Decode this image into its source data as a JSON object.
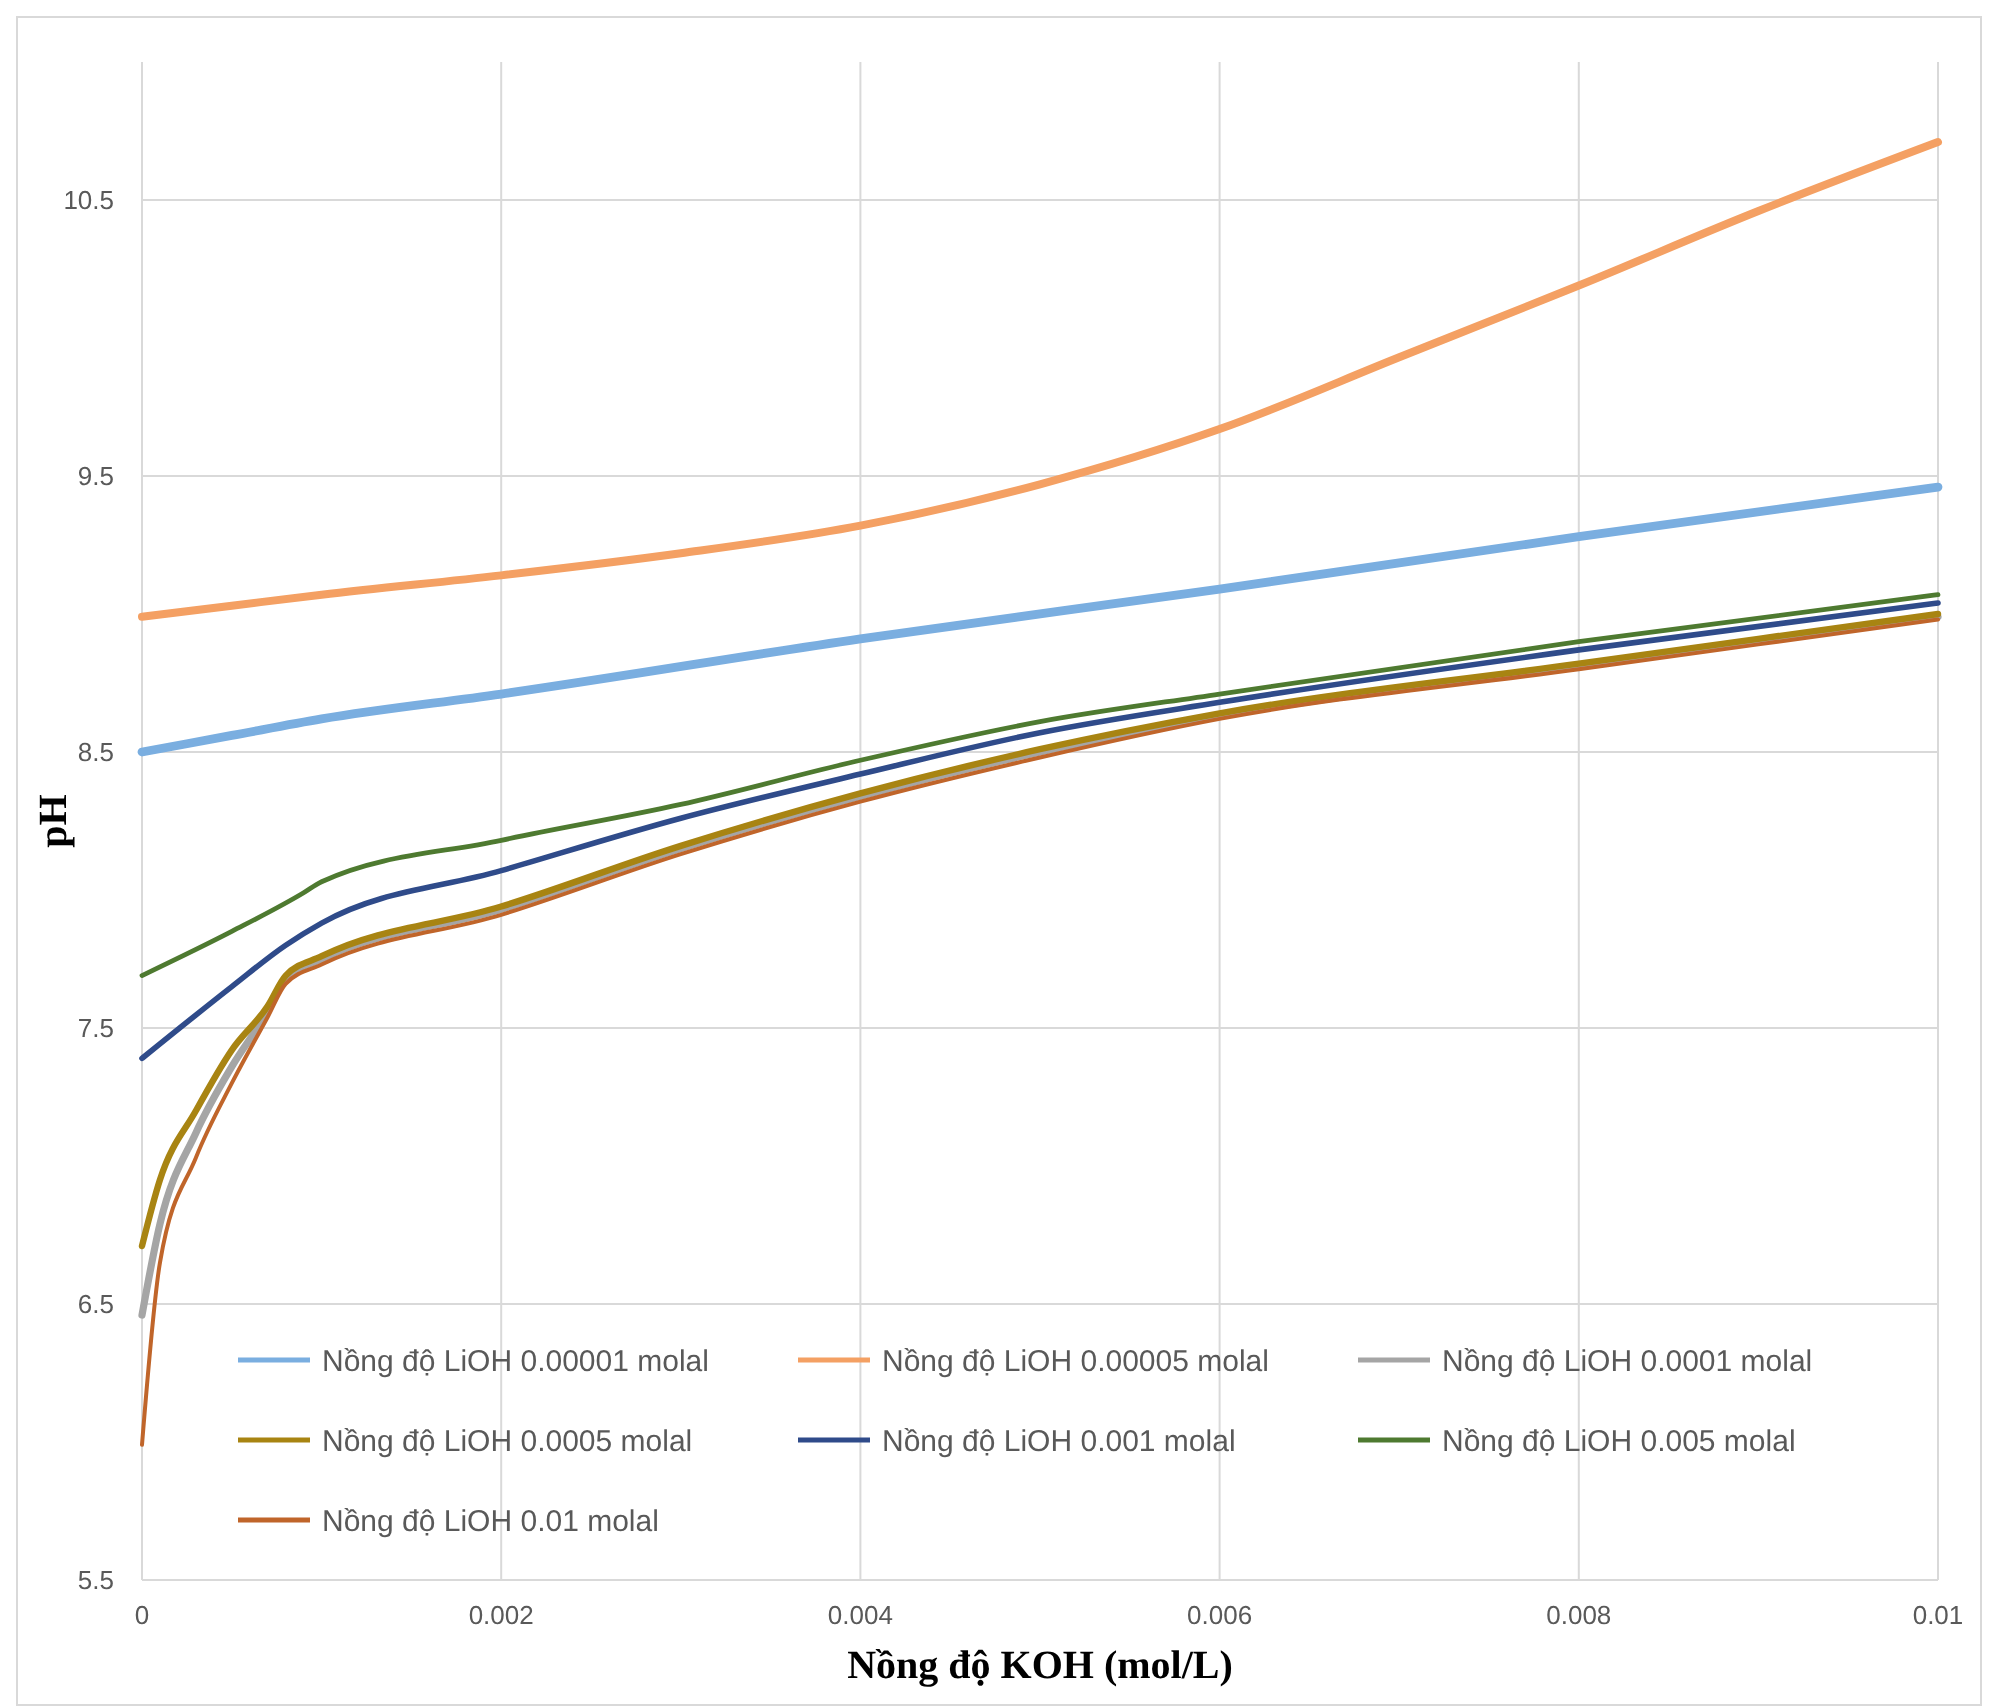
{
  "chart_data": {
    "type": "line",
    "xlabel": "Nồng độ KOH (mol/L)",
    "ylabel": "pH",
    "xlim": [
      0,
      0.01
    ],
    "xticks": [
      0,
      0.002,
      0.004,
      0.006,
      0.008,
      0.01
    ],
    "ylim": [
      5.5,
      11
    ],
    "yticks": [
      5.5,
      6.5,
      7.5,
      8.5,
      9.5,
      10.5
    ],
    "grid": true,
    "legend": "bottom right",
    "marker": "none",
    "line_style": "solid",
    "series": [
      {
        "name": "Nồng độ LiOH 0.00001 molal",
        "color": "#7aaee0",
        "x": [
          0,
          0.0005,
          0.001,
          0.002,
          0.004,
          0.006,
          0.008,
          0.01
        ],
        "values": [
          8.5,
          8.56,
          8.62,
          8.71,
          8.91,
          9.09,
          9.28,
          9.46
        ]
      },
      {
        "name": "Nồng độ LiOH 0.00005 molal",
        "color": "#f4a063",
        "x": [
          0,
          0.0005,
          0.001,
          0.002,
          0.003,
          0.004,
          0.005,
          0.006,
          0.007,
          0.008,
          0.009,
          0.01
        ],
        "values": [
          8.99,
          9.03,
          9.07,
          9.14,
          9.22,
          9.32,
          9.47,
          9.67,
          9.93,
          10.19,
          10.46,
          10.71
        ]
      },
      {
        "name": "Nồng độ LiOH 0.0001 molal",
        "color": "#a5a5a5",
        "x": [
          0,
          0.0001,
          0.0003,
          0.0005,
          0.0007,
          0.0008,
          0.001,
          0.002,
          0.003,
          0.004,
          0.005,
          0.006,
          0.008,
          0.01
        ],
        "values": [
          6.46,
          6.79,
          7.12,
          7.36,
          7.56,
          7.68,
          7.75,
          7.93,
          8.15,
          8.34,
          8.5,
          8.63,
          8.81,
          8.99
        ]
      },
      {
        "name": "Nồng độ LiOH 0.0005 molal",
        "color": "#a88412",
        "x": [
          0,
          0.0001,
          0.0003,
          0.0005,
          0.0007,
          0.0008,
          0.001,
          0.002,
          0.003,
          0.004,
          0.005,
          0.006,
          0.008,
          0.01
        ],
        "values": [
          6.71,
          6.95,
          7.2,
          7.42,
          7.58,
          7.69,
          7.76,
          7.94,
          8.16,
          8.35,
          8.51,
          8.64,
          8.82,
          9.0
        ]
      },
      {
        "name": "Nồng độ LiOH 0.001 molal",
        "color": "#2f4b8a",
        "x": [
          0,
          0.0005,
          0.0008,
          0.001,
          0.002,
          0.003,
          0.004,
          0.005,
          0.006,
          0.008,
          0.01
        ],
        "values": [
          7.39,
          7.65,
          7.8,
          7.88,
          8.07,
          8.26,
          8.42,
          8.57,
          8.68,
          8.87,
          9.04
        ]
      },
      {
        "name": "Nồng độ LiOH 0.005 molal",
        "color": "#4e7a30",
        "x": [
          0,
          0.0005,
          0.0009,
          0.001,
          0.002,
          0.003,
          0.004,
          0.005,
          0.006,
          0.008,
          0.01
        ],
        "values": [
          7.69,
          7.85,
          7.99,
          8.03,
          8.18,
          8.31,
          8.47,
          8.61,
          8.71,
          8.9,
          9.07
        ]
      },
      {
        "name": "Nồng độ LiOH 0.01 molal",
        "color": "#c0652a",
        "x": [
          0,
          0.0001,
          0.0003,
          0.0005,
          0.0007,
          0.0008,
          0.001,
          0.002,
          0.003,
          0.004,
          0.005,
          0.006,
          0.008,
          0.01
        ],
        "values": [
          5.99,
          6.65,
          7.03,
          7.3,
          7.54,
          7.66,
          7.73,
          7.91,
          8.13,
          8.32,
          8.48,
          8.62,
          8.8,
          8.98
        ]
      }
    ]
  }
}
